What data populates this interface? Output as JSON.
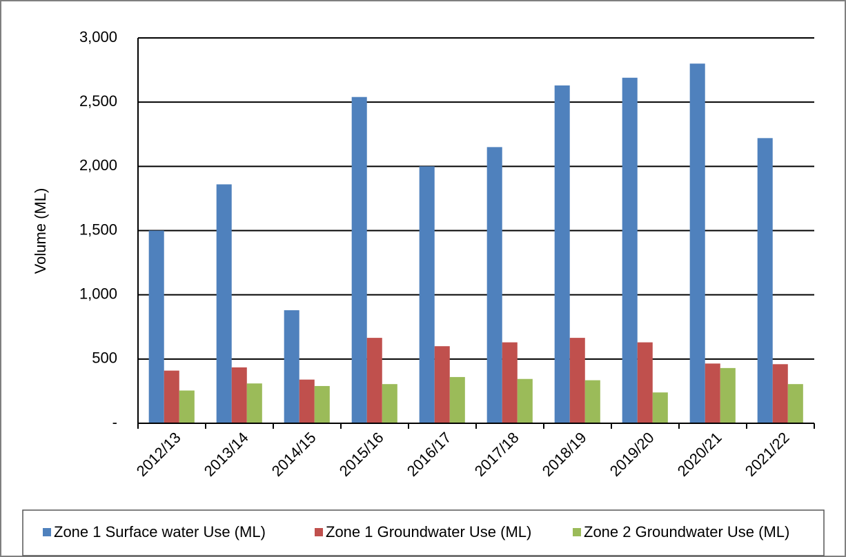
{
  "chart_data": {
    "type": "bar",
    "y_label": "Volume (ML)",
    "categories": [
      "2012/13",
      "2013/14",
      "2014/15",
      "2015/16",
      "2016/17",
      "2017/18",
      "2018/19",
      "2019/20",
      "2020/21",
      "2021/22"
    ],
    "series": [
      {
        "name": "Zone 1 Surface water Use (ML)",
        "color": "#4f81bd",
        "values": [
          1500,
          1860,
          880,
          2540,
          2000,
          2150,
          2630,
          2690,
          2800,
          2220
        ]
      },
      {
        "name": "Zone 1 Groundwater Use (ML)",
        "color": "#c0504d",
        "values": [
          410,
          435,
          340,
          665,
          600,
          630,
          665,
          630,
          465,
          460
        ]
      },
      {
        "name": "Zone 2 Groundwater Use (ML)",
        "color": "#9bbb59",
        "values": [
          255,
          310,
          290,
          305,
          360,
          345,
          335,
          240,
          430,
          305
        ]
      }
    ],
    "ylim": [
      0,
      3000
    ],
    "yticks": [
      {
        "value": 0,
        "label": "-"
      },
      500,
      {
        "value": 1000,
        "label": "1,000"
      },
      {
        "value": 1500,
        "label": "1,500"
      },
      {
        "value": 2000,
        "label": "2,000"
      },
      {
        "value": 2500,
        "label": "2,500"
      },
      {
        "value": 3000,
        "label": "3,000"
      }
    ],
    "grid": true,
    "legend": "bottom"
  }
}
